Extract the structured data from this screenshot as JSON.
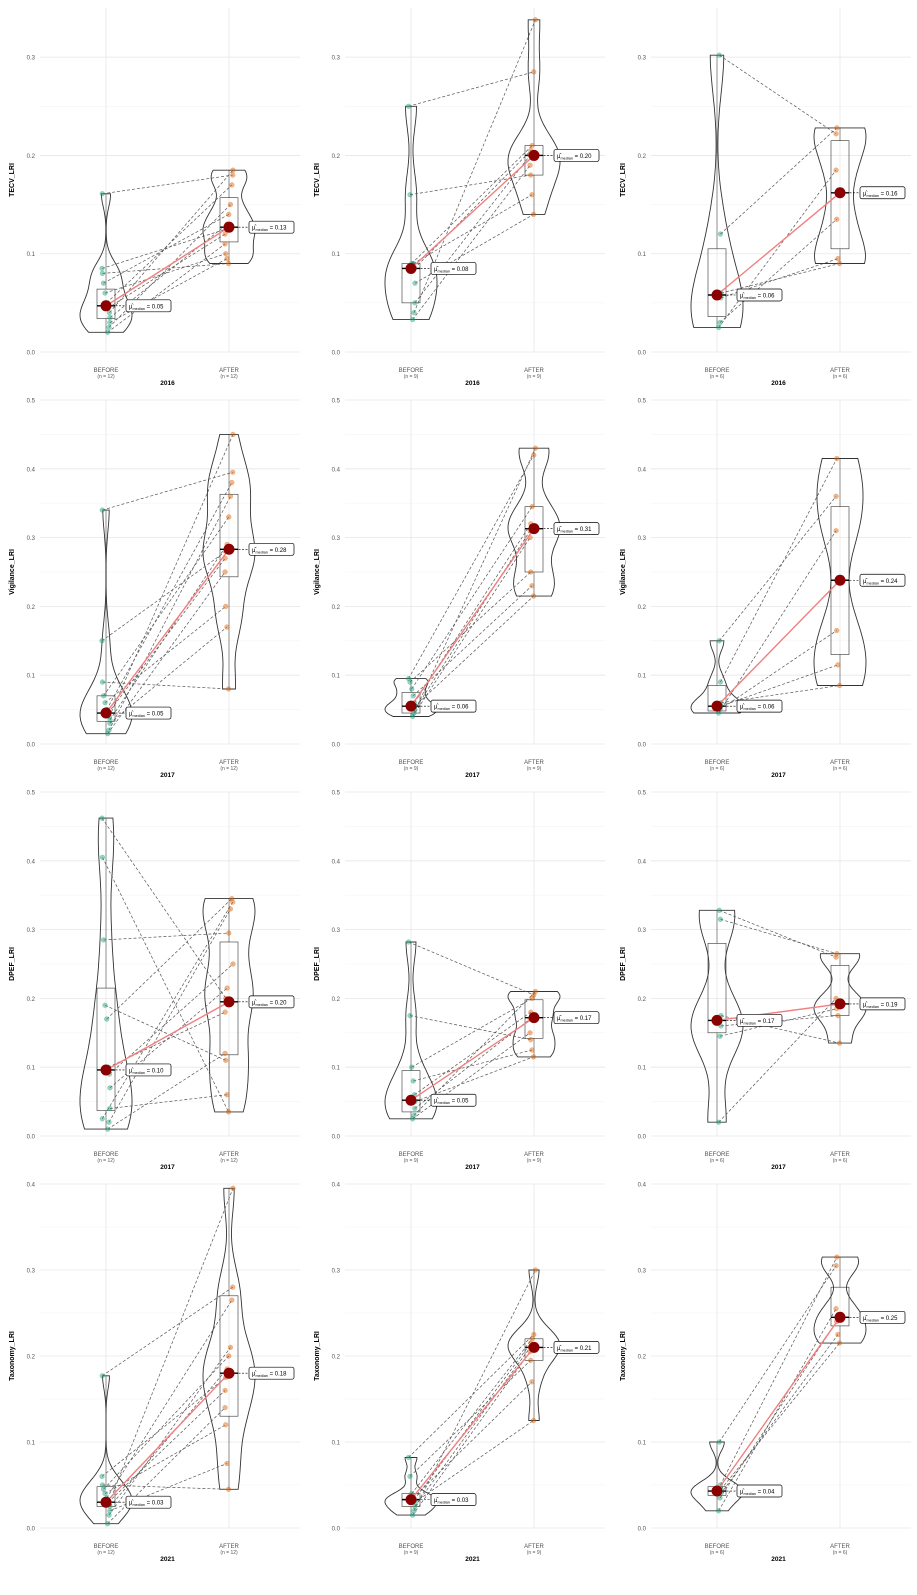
{
  "colors": {
    "before_points": "#1b9e77",
    "after_points": "#d95f02",
    "median_point": "#8b0000",
    "median_line": "#f08080",
    "pair_lines": "#555555",
    "grid": "#e6e6e6",
    "outline": "#333333"
  },
  "chart_data": [
    {
      "type": "violin",
      "ylabel": "TECV_LRI",
      "xlabel": "2016",
      "ylim": [
        0,
        0.35
      ],
      "yticks": [
        "0.0",
        "0.1",
        "0.2",
        "0.3"
      ],
      "categories": [
        "BEFORE",
        "AFTER"
      ],
      "n_labels": [
        "(n = 12)",
        "(n = 12)"
      ],
      "median_labels": [
        "0.05",
        "0.13"
      ],
      "medians": [
        0.047,
        0.127
      ],
      "q1": [
        0.034,
        0.112
      ],
      "q3": [
        0.064,
        0.157
      ],
      "min": [
        0.02,
        0.09
      ],
      "max": [
        0.161,
        0.185
      ],
      "before_values": [
        0.02,
        0.025,
        0.03,
        0.035,
        0.04,
        0.045,
        0.05,
        0.06,
        0.07,
        0.08,
        0.085,
        0.161
      ],
      "after_values": [
        0.09,
        0.095,
        0.1,
        0.11,
        0.12,
        0.125,
        0.13,
        0.14,
        0.15,
        0.17,
        0.18,
        0.185
      ]
    },
    {
      "type": "violin",
      "ylabel": "TECV_LRI",
      "xlabel": "2016",
      "ylim": [
        0,
        0.35
      ],
      "yticks": [
        "0.0",
        "0.1",
        "0.2",
        "0.3"
      ],
      "categories": [
        "BEFORE",
        "AFTER"
      ],
      "n_labels": [
        "(n = 9)",
        "(n = 9)"
      ],
      "median_labels": [
        "0.08",
        "0.20"
      ],
      "medians": [
        0.085,
        0.2
      ],
      "q1": [
        0.05,
        0.18
      ],
      "q3": [
        0.09,
        0.21
      ],
      "min": [
        0.033,
        0.14
      ],
      "max": [
        0.25,
        0.338
      ],
      "before_values": [
        0.033,
        0.04,
        0.05,
        0.07,
        0.085,
        0.09,
        0.09,
        0.16,
        0.25
      ],
      "after_values": [
        0.14,
        0.16,
        0.18,
        0.19,
        0.2,
        0.205,
        0.21,
        0.285,
        0.338
      ]
    },
    {
      "type": "violin",
      "ylabel": "TECV_LRI",
      "xlabel": "2016",
      "ylim": [
        0,
        0.35
      ],
      "yticks": [
        "0.0",
        "0.1",
        "0.2",
        "0.3"
      ],
      "categories": [
        "BEFORE",
        "AFTER"
      ],
      "n_labels": [
        "(n = 6)",
        "(n = 6)"
      ],
      "median_labels": [
        "0.06",
        "0.16"
      ],
      "medians": [
        0.058,
        0.162
      ],
      "q1": [
        0.036,
        0.105
      ],
      "q3": [
        0.105,
        0.215
      ],
      "min": [
        0.025,
        0.09
      ],
      "max": [
        0.302,
        0.228
      ],
      "before_values": [
        0.025,
        0.03,
        0.055,
        0.06,
        0.12,
        0.302
      ],
      "after_values": [
        0.09,
        0.095,
        0.135,
        0.185,
        0.222,
        0.228
      ]
    },
    {
      "type": "violin",
      "ylabel": "Vigilance_LRI",
      "xlabel": "2017",
      "ylim": [
        0,
        0.5
      ],
      "yticks": [
        "0.0",
        "0.1",
        "0.2",
        "0.3",
        "0.4",
        "0.5"
      ],
      "categories": [
        "BEFORE",
        "AFTER"
      ],
      "n_labels": [
        "(n = 12)",
        "(n = 12)"
      ],
      "median_labels": [
        "0.05",
        "0.28"
      ],
      "medians": [
        0.045,
        0.283
      ],
      "q1": [
        0.033,
        0.243
      ],
      "q3": [
        0.07,
        0.363
      ],
      "min": [
        0.015,
        0.08
      ],
      "max": [
        0.34,
        0.45
      ],
      "before_values": [
        0.015,
        0.02,
        0.03,
        0.035,
        0.04,
        0.045,
        0.05,
        0.06,
        0.07,
        0.09,
        0.15,
        0.34
      ],
      "after_values": [
        0.08,
        0.17,
        0.2,
        0.25,
        0.27,
        0.28,
        0.29,
        0.33,
        0.36,
        0.38,
        0.395,
        0.45
      ]
    },
    {
      "type": "violin",
      "ylabel": "Vigilance_LRI",
      "xlabel": "2017",
      "ylim": [
        0,
        0.5
      ],
      "yticks": [
        "0.0",
        "0.1",
        "0.2",
        "0.3",
        "0.4",
        "0.5"
      ],
      "categories": [
        "BEFORE",
        "AFTER"
      ],
      "n_labels": [
        "(n = 9)",
        "(n = 9)"
      ],
      "median_labels": [
        "0.06",
        "0.31"
      ],
      "medians": [
        0.055,
        0.313
      ],
      "q1": [
        0.045,
        0.25
      ],
      "q3": [
        0.075,
        0.345
      ],
      "min": [
        0.04,
        0.215
      ],
      "max": [
        0.095,
        0.43
      ],
      "before_values": [
        0.04,
        0.045,
        0.05,
        0.055,
        0.06,
        0.07,
        0.08,
        0.09,
        0.095
      ],
      "after_values": [
        0.215,
        0.23,
        0.25,
        0.3,
        0.31,
        0.32,
        0.345,
        0.42,
        0.43
      ]
    },
    {
      "type": "violin",
      "ylabel": "Vigilance_LRI",
      "xlabel": "2017",
      "ylim": [
        0,
        0.5
      ],
      "yticks": [
        "0.0",
        "0.1",
        "0.2",
        "0.3",
        "0.4",
        "0.5"
      ],
      "categories": [
        "BEFORE",
        "AFTER"
      ],
      "n_labels": [
        "(n = 6)",
        "(n = 6)"
      ],
      "median_labels": [
        "0.06",
        "0.24"
      ],
      "medians": [
        0.055,
        0.238
      ],
      "q1": [
        0.048,
        0.13
      ],
      "q3": [
        0.085,
        0.345
      ],
      "min": [
        0.045,
        0.085
      ],
      "max": [
        0.15,
        0.415
      ],
      "before_values": [
        0.045,
        0.05,
        0.055,
        0.06,
        0.09,
        0.15
      ],
      "after_values": [
        0.085,
        0.115,
        0.165,
        0.31,
        0.36,
        0.415
      ]
    },
    {
      "type": "violin",
      "ylabel": "DPEF_LRI",
      "xlabel": "2017",
      "ylim": [
        0,
        0.5
      ],
      "yticks": [
        "0.0",
        "0.1",
        "0.2",
        "0.3",
        "0.4",
        "0.5"
      ],
      "categories": [
        "BEFORE",
        "AFTER"
      ],
      "n_labels": [
        "(n = 12)",
        "(n = 12)"
      ],
      "median_labels": [
        "0.10",
        "0.20"
      ],
      "medians": [
        0.096,
        0.195
      ],
      "q1": [
        0.037,
        0.118
      ],
      "q3": [
        0.215,
        0.282
      ],
      "min": [
        0.01,
        0.035
      ],
      "max": [
        0.462,
        0.345
      ],
      "before_values": [
        0.01,
        0.02,
        0.04,
        0.07,
        0.09,
        0.1,
        0.17,
        0.19,
        0.285,
        0.405,
        0.462,
        0.025
      ],
      "after_values": [
        0.035,
        0.06,
        0.11,
        0.12,
        0.18,
        0.2,
        0.215,
        0.295,
        0.33,
        0.345,
        0.34,
        0.25
      ]
    },
    {
      "type": "violin",
      "ylabel": "DPEF_LRI",
      "xlabel": "2017",
      "ylim": [
        0,
        0.5
      ],
      "yticks": [
        "0.0",
        "0.1",
        "0.2",
        "0.3",
        "0.4",
        "0.5"
      ],
      "categories": [
        "BEFORE",
        "AFTER"
      ],
      "n_labels": [
        "(n = 9)",
        "(n = 9)"
      ],
      "median_labels": [
        "0.05",
        "0.17"
      ],
      "medians": [
        0.052,
        0.172
      ],
      "q1": [
        0.035,
        0.142
      ],
      "q3": [
        0.095,
        0.198
      ],
      "min": [
        0.025,
        0.115
      ],
      "max": [
        0.282,
        0.21
      ],
      "before_values": [
        0.025,
        0.03,
        0.04,
        0.05,
        0.06,
        0.08,
        0.1,
        0.175,
        0.282
      ],
      "after_values": [
        0.115,
        0.125,
        0.14,
        0.15,
        0.17,
        0.18,
        0.2,
        0.205,
        0.21
      ]
    },
    {
      "type": "violin",
      "ylabel": "DPEF_LRI",
      "xlabel": "2017",
      "ylim": [
        0,
        0.5
      ],
      "yticks": [
        "0.0",
        "0.1",
        "0.2",
        "0.3",
        "0.4",
        "0.5"
      ],
      "categories": [
        "BEFORE",
        "AFTER"
      ],
      "n_labels": [
        "(n = 6)",
        "(n = 6)"
      ],
      "median_labels": [
        "0.17",
        "0.19"
      ],
      "medians": [
        0.168,
        0.192
      ],
      "q1": [
        0.15,
        0.175
      ],
      "q3": [
        0.28,
        0.248
      ],
      "min": [
        0.02,
        0.135
      ],
      "max": [
        0.328,
        0.265
      ],
      "before_values": [
        0.02,
        0.145,
        0.16,
        0.175,
        0.315,
        0.328
      ],
      "after_values": [
        0.135,
        0.175,
        0.185,
        0.2,
        0.26,
        0.265
      ]
    },
    {
      "type": "violin",
      "ylabel": "Taxonomy_LRI",
      "xlabel": "2021",
      "ylim": [
        0,
        0.4
      ],
      "yticks": [
        "0.0",
        "0.1",
        "0.2",
        "0.3",
        "0.4"
      ],
      "categories": [
        "BEFORE",
        "AFTER"
      ],
      "n_labels": [
        "(n = 12)",
        "(n = 12)"
      ],
      "median_labels": [
        "0.03",
        "0.18"
      ],
      "medians": [
        0.03,
        0.18
      ],
      "q1": [
        0.025,
        0.13
      ],
      "q3": [
        0.048,
        0.27
      ],
      "min": [
        0.005,
        0.045
      ],
      "max": [
        0.177,
        0.395
      ],
      "before_values": [
        0.005,
        0.015,
        0.02,
        0.025,
        0.03,
        0.03,
        0.035,
        0.04,
        0.045,
        0.05,
        0.06,
        0.177
      ],
      "after_values": [
        0.045,
        0.075,
        0.12,
        0.14,
        0.16,
        0.175,
        0.185,
        0.2,
        0.21,
        0.265,
        0.28,
        0.395
      ]
    },
    {
      "type": "violin",
      "ylabel": "Taxonomy_LRI",
      "xlabel": "2021",
      "ylim": [
        0,
        0.4
      ],
      "yticks": [
        "0.0",
        "0.1",
        "0.2",
        "0.3",
        "0.4"
      ],
      "categories": [
        "BEFORE",
        "AFTER"
      ],
      "n_labels": [
        "(n = 9)",
        "(n = 9)"
      ],
      "median_labels": [
        "0.03",
        "0.21"
      ],
      "medians": [
        0.033,
        0.21
      ],
      "q1": [
        0.025,
        0.195
      ],
      "q3": [
        0.04,
        0.22
      ],
      "min": [
        0.015,
        0.125
      ],
      "max": [
        0.082,
        0.3
      ],
      "before_values": [
        0.015,
        0.02,
        0.025,
        0.03,
        0.033,
        0.035,
        0.04,
        0.06,
        0.082
      ],
      "after_values": [
        0.125,
        0.17,
        0.195,
        0.205,
        0.21,
        0.215,
        0.22,
        0.225,
        0.3
      ]
    },
    {
      "type": "violin",
      "ylabel": "Taxonomy_LRI",
      "xlabel": "2021",
      "ylim": [
        0,
        0.4
      ],
      "yticks": [
        "0.0",
        "0.1",
        "0.2",
        "0.3",
        "0.4"
      ],
      "categories": [
        "BEFORE",
        "AFTER"
      ],
      "n_labels": [
        "(n = 6)",
        "(n = 6)"
      ],
      "median_labels": [
        "0.04",
        "0.25"
      ],
      "medians": [
        0.043,
        0.245
      ],
      "q1": [
        0.038,
        0.235
      ],
      "q3": [
        0.048,
        0.28
      ],
      "min": [
        0.02,
        0.215
      ],
      "max": [
        0.1,
        0.315
      ],
      "before_values": [
        0.02,
        0.035,
        0.04,
        0.045,
        0.05,
        0.1
      ],
      "after_values": [
        0.215,
        0.225,
        0.24,
        0.255,
        0.305,
        0.315
      ]
    }
  ]
}
